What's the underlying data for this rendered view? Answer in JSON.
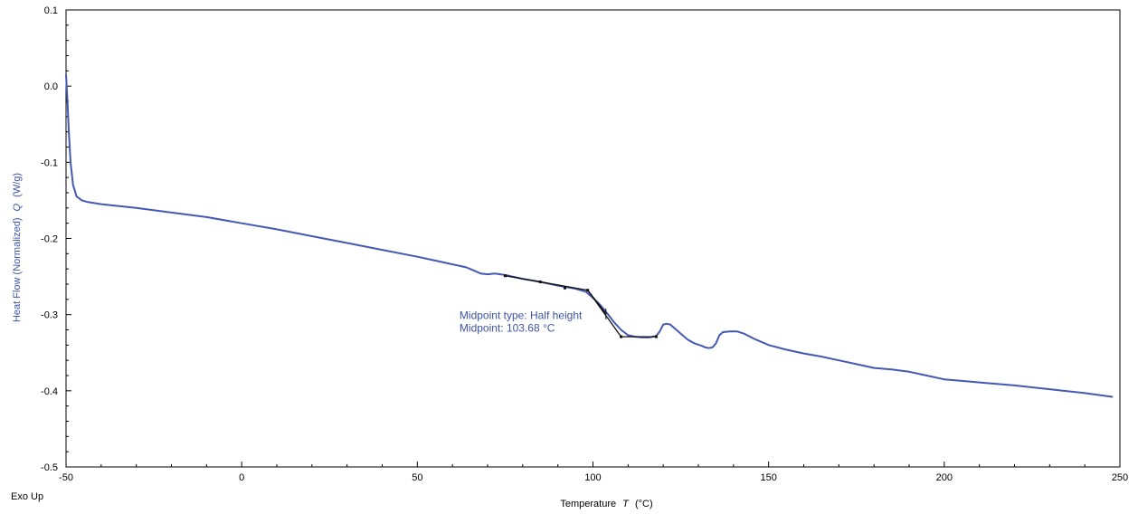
{
  "colors": {
    "series": "#4459b3",
    "ylabel": "#3c54a8",
    "annotation": "#3c54a8",
    "analysis": "#111111",
    "axis": "#000000"
  },
  "exo_label": "Exo Up",
  "chart_data": {
    "type": "line",
    "title": "",
    "xlabel": "Temperature",
    "xlabel_symbol": "T",
    "xlabel_unit": "(°C)",
    "ylabel": "Heat Flow (Normalized)",
    "ylabel_symbol": "Q",
    "ylabel_unit": "(W/g)",
    "xlim": [
      -50,
      250
    ],
    "ylim": [
      -0.5,
      0.1
    ],
    "x_ticks": [
      -50,
      0,
      50,
      100,
      150,
      200,
      250
    ],
    "x_tick_labels": [
      "-50",
      "0",
      "50",
      "100",
      "150",
      "200",
      "250"
    ],
    "y_ticks": [
      0.1,
      0.0,
      -0.1,
      -0.2,
      -0.3,
      -0.4,
      -0.5
    ],
    "y_tick_labels": [
      "0.1",
      "0.0",
      "-0.1",
      "-0.2",
      "-0.3",
      "-0.4",
      "-0.5"
    ],
    "grid": false,
    "legend": "none",
    "series": [
      {
        "points": [
          [
            -50,
            0.015
          ],
          [
            -49.6,
            -0.02
          ],
          [
            -49.2,
            -0.06
          ],
          [
            -48.7,
            -0.1
          ],
          [
            -48.0,
            -0.13
          ],
          [
            -47.0,
            -0.145
          ],
          [
            -45.5,
            -0.15
          ],
          [
            -44,
            -0.152
          ],
          [
            -40,
            -0.155
          ],
          [
            -30,
            -0.16
          ],
          [
            -20,
            -0.166
          ],
          [
            -10,
            -0.172
          ],
          [
            0,
            -0.18
          ],
          [
            10,
            -0.188
          ],
          [
            20,
            -0.197
          ],
          [
            30,
            -0.206
          ],
          [
            40,
            -0.215
          ],
          [
            50,
            -0.224
          ],
          [
            55,
            -0.229
          ],
          [
            60,
            -0.234
          ],
          [
            64,
            -0.238
          ],
          [
            66,
            -0.242
          ],
          [
            68,
            -0.246
          ],
          [
            70,
            -0.247
          ],
          [
            72,
            -0.246
          ],
          [
            75,
            -0.248
          ],
          [
            80,
            -0.253
          ],
          [
            85,
            -0.257
          ],
          [
            90,
            -0.262
          ],
          [
            95,
            -0.266
          ],
          [
            98,
            -0.27
          ],
          [
            100,
            -0.278
          ],
          [
            102,
            -0.287
          ],
          [
            104,
            -0.298
          ],
          [
            106,
            -0.31
          ],
          [
            108,
            -0.32
          ],
          [
            110,
            -0.327
          ],
          [
            112,
            -0.329
          ],
          [
            114,
            -0.33
          ],
          [
            116,
            -0.33
          ],
          [
            118,
            -0.328
          ],
          [
            119,
            -0.322
          ],
          [
            120,
            -0.313
          ],
          [
            121,
            -0.312
          ],
          [
            122,
            -0.313
          ],
          [
            123,
            -0.317
          ],
          [
            125,
            -0.325
          ],
          [
            127,
            -0.333
          ],
          [
            129,
            -0.338
          ],
          [
            131,
            -0.341
          ],
          [
            132,
            -0.343
          ],
          [
            133,
            -0.344
          ],
          [
            134,
            -0.343
          ],
          [
            135,
            -0.338
          ],
          [
            136,
            -0.327
          ],
          [
            137,
            -0.323
          ],
          [
            139,
            -0.322
          ],
          [
            141,
            -0.322
          ],
          [
            143,
            -0.325
          ],
          [
            146,
            -0.332
          ],
          [
            150,
            -0.34
          ],
          [
            155,
            -0.346
          ],
          [
            160,
            -0.351
          ],
          [
            165,
            -0.355
          ],
          [
            170,
            -0.36
          ],
          [
            175,
            -0.365
          ],
          [
            180,
            -0.37
          ],
          [
            185,
            -0.372
          ],
          [
            190,
            -0.375
          ],
          [
            195,
            -0.38
          ],
          [
            200,
            -0.385
          ],
          [
            205,
            -0.387
          ],
          [
            210,
            -0.389
          ],
          [
            220,
            -0.393
          ],
          [
            230,
            -0.398
          ],
          [
            240,
            -0.403
          ],
          [
            248,
            -0.408
          ]
        ]
      }
    ],
    "analysis_overlay": {
      "lines": [
        [
          [
            75,
            -0.249
          ],
          [
            98.5,
            -0.268
          ],
          [
            108,
            -0.329
          ],
          [
            118,
            -0.329
          ]
        ],
        [
          [
            98.5,
            -0.268
          ],
          [
            103.68,
            -0.299
          ]
        ]
      ],
      "markers": [
        [
          75,
          -0.249
        ],
        [
          85,
          -0.257
        ],
        [
          92,
          -0.265
        ],
        [
          98.5,
          -0.268
        ],
        [
          108,
          -0.329
        ],
        [
          118,
          -0.329
        ]
      ],
      "midpoint": [
        103.68,
        -0.299
      ]
    },
    "annotation": {
      "anchor": [
        62,
        -0.306
      ],
      "lines": [
        "Midpoint type: Half height",
        "Midpoint: 103.68 °C"
      ]
    }
  }
}
